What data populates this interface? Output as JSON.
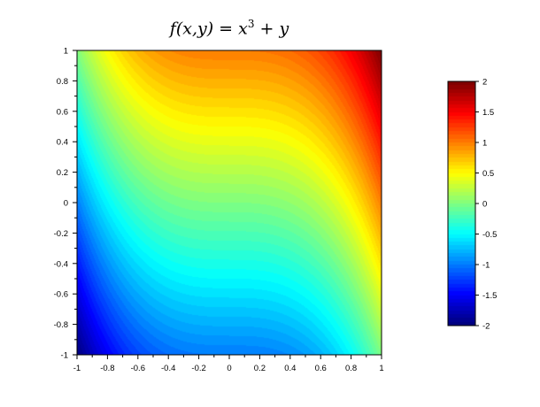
{
  "chart_data": {
    "type": "heatmap",
    "title": {
      "prefix": "f(x,y) = x",
      "exponent": "3",
      "suffix": " + y"
    },
    "function": "x^3 + y",
    "xlim": [
      -1,
      1
    ],
    "ylim": [
      -1,
      1
    ],
    "xticks": [
      "-1",
      "-0.8",
      "-0.6",
      "-0.4",
      "-0.2",
      "0",
      "0.2",
      "0.4",
      "0.6",
      "0.8",
      "1"
    ],
    "yticks": [
      "-1",
      "-0.8",
      "-0.6",
      "-0.4",
      "-0.2",
      "0",
      "0.2",
      "0.4",
      "0.6",
      "0.8",
      "1"
    ],
    "colormap": "jet",
    "color_levels": 64,
    "colorbar": {
      "range": [
        -2,
        2
      ],
      "ticks": [
        "-2",
        "-1.5",
        "-1",
        "-0.5",
        "0",
        "0.5",
        "1",
        "1.5",
        "2"
      ],
      "position": "right"
    },
    "grid": false
  }
}
